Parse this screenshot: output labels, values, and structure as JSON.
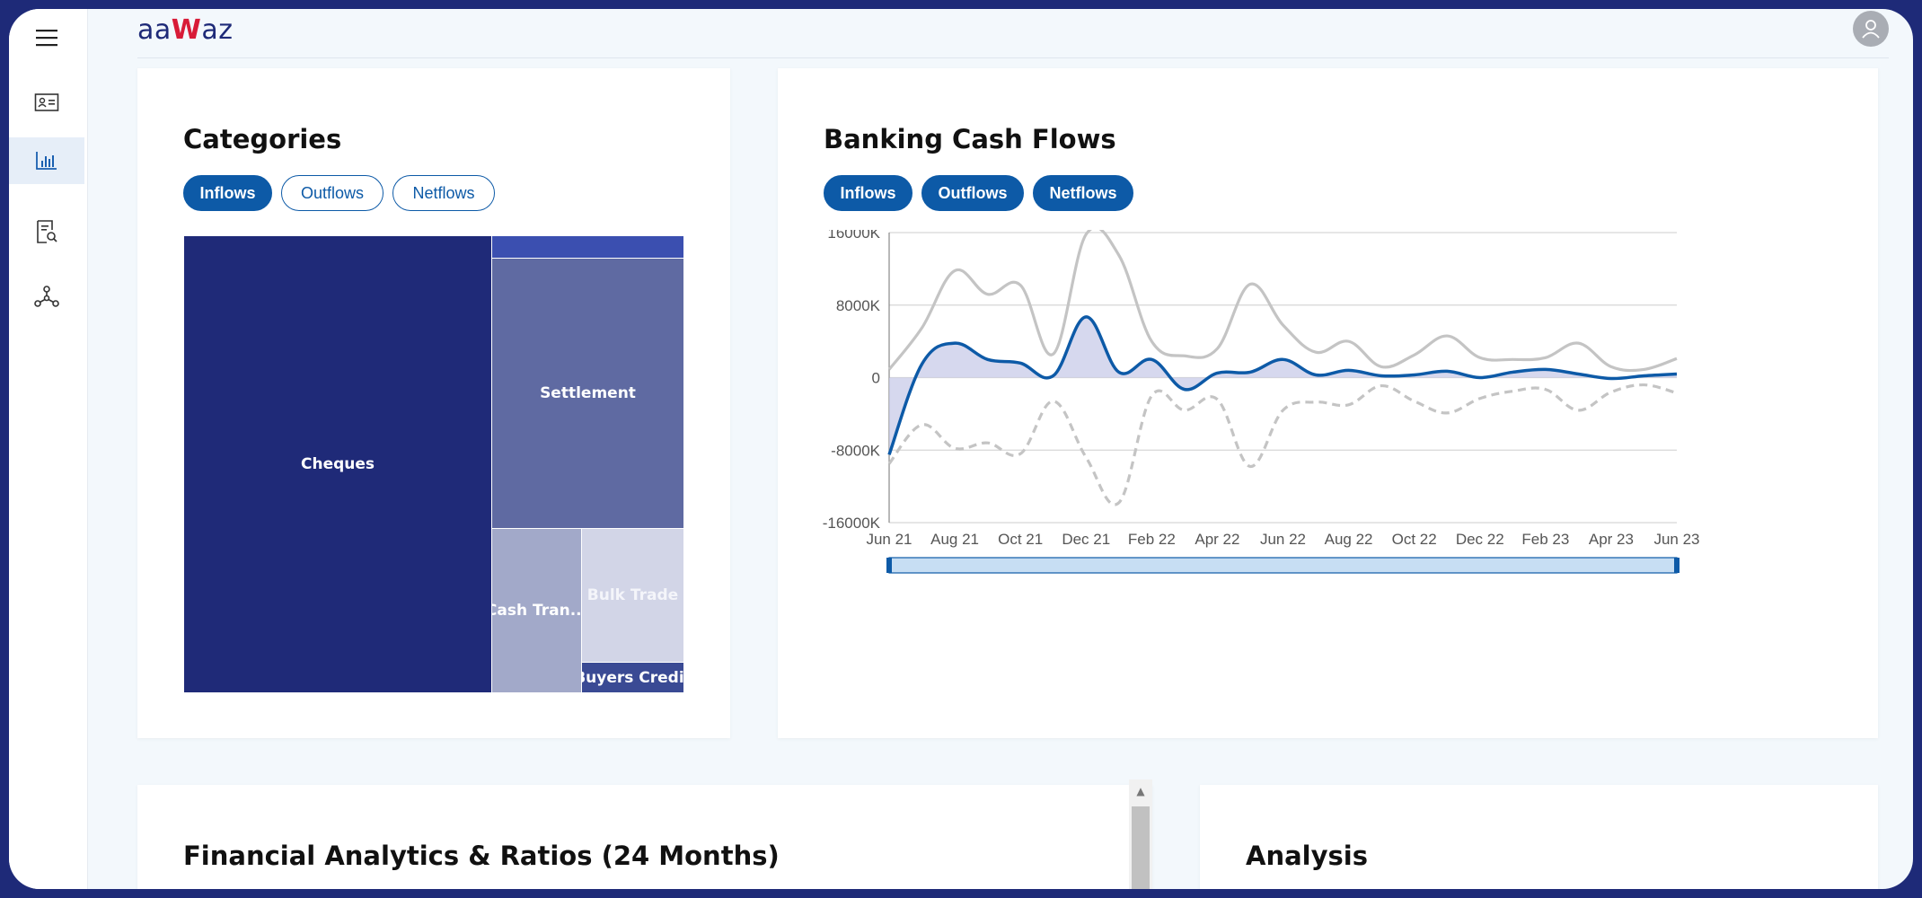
{
  "app": {
    "logo_prefix": "aa",
    "logo_w": "W",
    "logo_suffix": "az"
  },
  "sidebar": {
    "items": [
      {
        "icon": "menu-icon"
      },
      {
        "icon": "id-card-icon"
      },
      {
        "icon": "bar-chart-icon",
        "active": true
      },
      {
        "icon": "document-search-icon"
      },
      {
        "icon": "network-icon"
      }
    ]
  },
  "categories": {
    "title": "Categories",
    "tabs": [
      "Inflows",
      "Outflows",
      "Netflows"
    ],
    "active_tab": "Inflows",
    "treemap": [
      {
        "label": "Cheques",
        "color": "#1f2a78"
      },
      {
        "label": "",
        "color": "#3b4fb0"
      },
      {
        "label": "Settlement",
        "color": "#5f6aa2"
      },
      {
        "label": "Cash Tran...",
        "color": "#a2a9c9"
      },
      {
        "label": "Bulk Trade",
        "color": "#d2d5e7"
      },
      {
        "label": "Buyers Credit",
        "color": "#3a4a94"
      }
    ]
  },
  "cashflows": {
    "title": "Banking Cash Flows",
    "tabs": [
      "Inflows",
      "Outflows",
      "Netflows"
    ]
  },
  "chart_data": {
    "type": "line",
    "title": "Banking Cash Flows",
    "x": [
      "Jun 21",
      "Jul 21",
      "Aug 21",
      "Sep 21",
      "Oct 21",
      "Nov 21",
      "Dec 21",
      "Jan 22",
      "Feb 22",
      "Mar 22",
      "Apr 22",
      "May 22",
      "Jun 22",
      "Jul 22",
      "Aug 22",
      "Sep 22",
      "Oct 22",
      "Nov 22",
      "Dec 22",
      "Jan 23",
      "Feb 23",
      "Mar 23",
      "Apr 23",
      "May 23",
      "Jun 23"
    ],
    "x_tick_labels": [
      "Jun 21",
      "Aug 21",
      "Oct 21",
      "Dec 21",
      "Feb 22",
      "Apr 22",
      "Jun 22",
      "Aug 22",
      "Oct 22",
      "Dec 22",
      "Feb 23",
      "Apr 23",
      "Jun 23"
    ],
    "y_tick_labels": [
      "16000K",
      "8000K",
      "0",
      "-8000K",
      "-16000K"
    ],
    "ylim": [
      -16000,
      16000
    ],
    "y_unit": "K",
    "series": [
      {
        "name": "Inflows",
        "color": "#c4c4c4",
        "style": "solid",
        "values": [
          900,
          5500,
          11800,
          9200,
          10200,
          2600,
          15800,
          13500,
          4000,
          2400,
          3200,
          10300,
          5800,
          2800,
          4000,
          1200,
          2500,
          4600,
          2200,
          2000,
          2200,
          3800,
          1200,
          900,
          2100
        ]
      },
      {
        "name": "Netflows",
        "color": "#0d5aa7",
        "style": "solid",
        "fill": "#c8cbe8",
        "values": [
          -8500,
          1500,
          3800,
          2000,
          1600,
          200,
          6700,
          600,
          2000,
          -1300,
          500,
          600,
          2000,
          300,
          800,
          200,
          300,
          700,
          0,
          600,
          900,
          400,
          -100,
          200,
          400
        ]
      },
      {
        "name": "Outflows",
        "color": "#c4c4c4",
        "style": "dashed",
        "values": [
          -9500,
          -5200,
          -7800,
          -7200,
          -8400,
          -2600,
          -8800,
          -13800,
          -2000,
          -3600,
          -2400,
          -9800,
          -3600,
          -2700,
          -3000,
          -900,
          -2600,
          -3900,
          -2300,
          -1500,
          -1300,
          -3600,
          -1600,
          -800,
          -1700
        ]
      }
    ],
    "zoom_slider": {
      "start": 0,
      "end": 100
    },
    "grid": true
  },
  "financial": {
    "title": "Financial Analytics & Ratios (24 Months)"
  },
  "analysis": {
    "title": "Analysis"
  }
}
